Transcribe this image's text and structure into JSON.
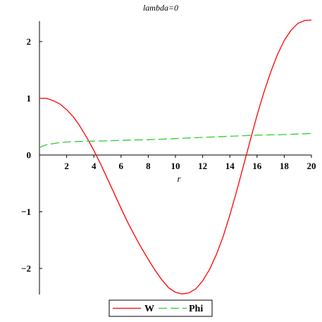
{
  "chart_data": {
    "type": "line",
    "title": "lambda=0",
    "xlabel": "r",
    "ylabel": "",
    "xlim": [
      0,
      20
    ],
    "ylim": [
      -2.45,
      2.4
    ],
    "grid": false,
    "legend_placement": "bottom-center",
    "x_ticks": [
      {
        "value": 2,
        "label": "2"
      },
      {
        "value": 4,
        "label": "4"
      },
      {
        "value": 6,
        "label": "6"
      },
      {
        "value": 8,
        "label": "8"
      },
      {
        "value": 10,
        "label": "10"
      },
      {
        "value": 12,
        "label": "12"
      },
      {
        "value": 14,
        "label": "14"
      },
      {
        "value": 16,
        "label": "16"
      },
      {
        "value": 18,
        "label": "18"
      },
      {
        "value": 20,
        "label": "20"
      }
    ],
    "y_ticks": [
      {
        "value": -2,
        "label": "−2"
      },
      {
        "value": -1,
        "label": "−1"
      },
      {
        "value": 0,
        "label": "0"
      },
      {
        "value": 1,
        "label": "1"
      },
      {
        "value": 2,
        "label": "2"
      }
    ],
    "series": [
      {
        "name": "W",
        "color": "#ff0000",
        "dash": "solid",
        "x": [
          0,
          0.5,
          1,
          1.5,
          2,
          2.5,
          3,
          3.5,
          4,
          4.5,
          5,
          5.5,
          6,
          6.5,
          7,
          7.5,
          8,
          8.5,
          9,
          9.5,
          10,
          10.5,
          11,
          11.5,
          12,
          12.5,
          13,
          13.5,
          14,
          14.5,
          15,
          15.5,
          16,
          16.5,
          17,
          17.5,
          18,
          18.5,
          19,
          19.5,
          20
        ],
        "y": [
          1.0,
          1.0,
          0.96,
          0.9,
          0.8,
          0.67,
          0.5,
          0.3,
          0.08,
          -0.16,
          -0.42,
          -0.68,
          -0.94,
          -1.19,
          -1.42,
          -1.64,
          -1.84,
          -2.03,
          -2.2,
          -2.34,
          -2.42,
          -2.45,
          -2.43,
          -2.36,
          -2.22,
          -2.02,
          -1.76,
          -1.44,
          -1.06,
          -0.64,
          -0.19,
          0.26,
          0.7,
          1.1,
          1.46,
          1.77,
          2.02,
          2.2,
          2.32,
          2.37,
          2.38
        ]
      },
      {
        "name": "Phi",
        "color": "#33cc33",
        "dash": "dashed",
        "x": [
          0,
          0.25,
          0.5,
          1,
          1.5,
          2,
          3,
          4,
          5,
          6,
          7,
          8,
          9,
          10,
          11,
          12,
          13,
          14,
          15,
          16,
          17,
          18,
          19,
          20
        ],
        "y": [
          0.13,
          0.16,
          0.18,
          0.2,
          0.22,
          0.23,
          0.24,
          0.245,
          0.25,
          0.26,
          0.265,
          0.27,
          0.28,
          0.29,
          0.3,
          0.31,
          0.32,
          0.33,
          0.34,
          0.35,
          0.355,
          0.36,
          0.37,
          0.38
        ]
      }
    ]
  }
}
